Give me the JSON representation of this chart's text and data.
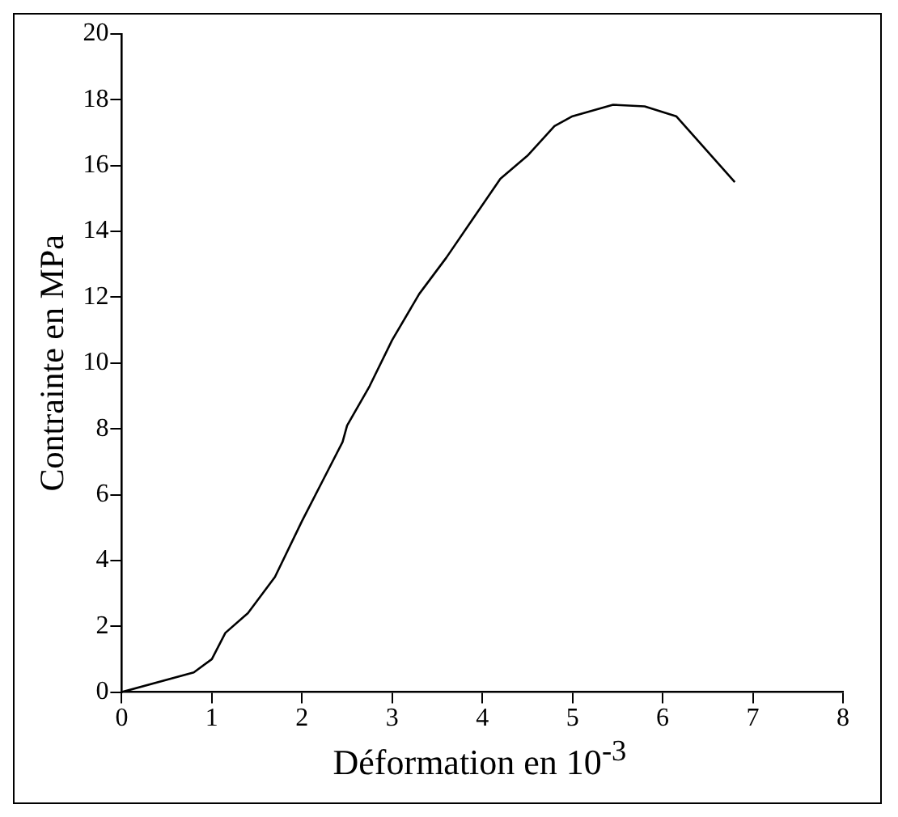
{
  "chart_data": {
    "type": "line",
    "xlabel": "Déformation en 10$^{-3}$",
    "ylabel": "Contrainte en MPa",
    "x": [
      0,
      0.8,
      1.0,
      1.15,
      1.4,
      1.7,
      2.0,
      2.3,
      2.45,
      2.5,
      2.75,
      3.0,
      3.3,
      3.6,
      3.9,
      4.2,
      4.5,
      4.8,
      5.0,
      5.45,
      5.8,
      6.15,
      6.8
    ],
    "series": [
      {
        "color": "#000000",
        "values": [
          0,
          0.6,
          1.0,
          1.8,
          2.4,
          3.5,
          5.2,
          6.8,
          7.6,
          8.1,
          9.3,
          10.7,
          12.1,
          13.2,
          14.4,
          15.6,
          16.3,
          17.2,
          17.5,
          17.85,
          17.8,
          17.5,
          15.5
        ]
      }
    ],
    "xlim": [
      0,
      8
    ],
    "xticks": [
      0,
      1,
      2,
      3,
      4,
      5,
      6,
      7,
      8
    ],
    "ylim": [
      0,
      20
    ],
    "yticks": [
      0,
      2,
      4,
      6,
      8,
      10,
      12,
      14,
      16,
      18,
      20
    ],
    "grid": false,
    "legend": false,
    "marker": "none",
    "line_style": "solid"
  }
}
